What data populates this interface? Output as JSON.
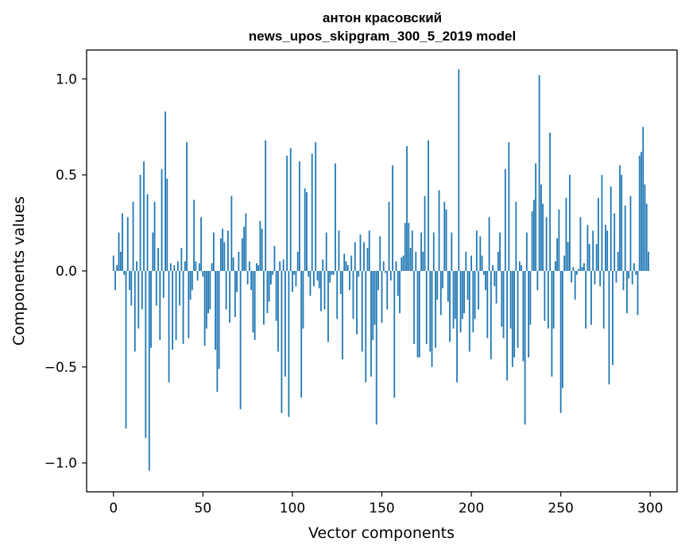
{
  "chart_data": {
    "type": "bar",
    "title": "антон красовский",
    "subtitle": "news_upos_skipgram_300_5_2019 model",
    "xlabel": "Vector components",
    "ylabel": "Components values",
    "xlim": [
      -15,
      315
    ],
    "ylim": [
      -1.15,
      1.15
    ],
    "grid": false,
    "legend": "none",
    "bar_color": "#1f77b4",
    "x_ticks": [
      {
        "value": 0,
        "label": "0"
      },
      {
        "value": 50,
        "label": "50"
      },
      {
        "value": 100,
        "label": "100"
      },
      {
        "value": 150,
        "label": "150"
      },
      {
        "value": 200,
        "label": "200"
      },
      {
        "value": 250,
        "label": "250"
      },
      {
        "value": 300,
        "label": "300"
      }
    ],
    "y_ticks": [
      {
        "value": -1.0,
        "label": "−1.0"
      },
      {
        "value": -0.5,
        "label": "−0.5"
      },
      {
        "value": 0.0,
        "label": "0.0"
      },
      {
        "value": 0.5,
        "label": "0.5"
      },
      {
        "value": 1.0,
        "label": "1.0"
      }
    ],
    "values": [
      0.08,
      -0.1,
      0.03,
      0.2,
      0.1,
      0.3,
      -0.02,
      -0.82,
      0.28,
      -0.1,
      -0.18,
      0.36,
      -0.42,
      0.05,
      -0.3,
      0.5,
      -0.2,
      0.57,
      -0.87,
      0.4,
      -1.04,
      -0.4,
      0.2,
      0.36,
      -0.18,
      0.12,
      -0.36,
      0.53,
      -0.14,
      0.83,
      0.48,
      -0.58,
      0.04,
      -0.41,
      0.03,
      -0.36,
      0.05,
      -0.18,
      0.12,
      -0.38,
      0.05,
      0.67,
      -0.35,
      -0.15,
      -0.1,
      0.37,
      0.05,
      -0.05,
      0.04,
      0.28,
      -0.03,
      -0.39,
      -0.3,
      -0.22,
      -0.2,
      0.04,
      0.2,
      -0.41,
      -0.63,
      -0.51,
      0.17,
      0.22,
      0.15,
      -0.2,
      0.21,
      -0.27,
      0.39,
      0.07,
      -0.24,
      -0.11,
      0.1,
      -0.72,
      0.17,
      0.23,
      0.3,
      -0.07,
      0.05,
      -0.1,
      -0.32,
      -0.36,
      0.04,
      0.03,
      0.26,
      0.22,
      -0.28,
      0.68,
      -0.22,
      -0.16,
      -0.07,
      -0.02,
      0.13,
      -0.26,
      -0.42,
      0.05,
      -0.74,
      0.06,
      -0.55,
      0.6,
      -0.76,
      0.64,
      -0.11,
      -0.02,
      -0.08,
      0.1,
      0.57,
      -0.66,
      -0.3,
      0.43,
      0.41,
      -0.03,
      -0.13,
      0.61,
      -0.08,
      0.67,
      -0.05,
      -0.09,
      -0.21,
      0.06,
      -0.2,
      0.2,
      -0.37,
      -0.06,
      -0.02,
      -0.02,
      0.56,
      -0.25,
      0.21,
      -0.12,
      -0.46,
      0.09,
      0.05,
      0.03,
      -0.1,
      0.08,
      -0.25,
      0.15,
      -0.33,
      -0.03,
      0.19,
      -0.42,
      0.15,
      -0.58,
      0.12,
      0.21,
      -0.55,
      -0.36,
      -0.28,
      -0.8,
      -0.1,
      0.18,
      -0.27,
      0.05,
      -0.01,
      -0.2,
      0.36,
      -0.05,
      0.55,
      -0.66,
      0.05,
      -0.13,
      -0.22,
      0.07,
      0.08,
      0.25,
      0.65,
      0.25,
      0.12,
      0.21,
      -0.38,
      0.1,
      -0.45,
      -0.45,
      0.2,
      0.1,
      0.39,
      -0.38,
      0.68,
      -0.42,
      -0.5,
      0.2,
      -0.4,
      -0.15,
      0.42,
      -0.23,
      -0.09,
      0.36,
      0.32,
      -0.16,
      -0.37,
      0.2,
      -0.3,
      -0.25,
      -0.58,
      1.05,
      -0.32,
      -0.25,
      -0.22,
      0.1,
      -0.15,
      -0.42,
      0.08,
      -0.32,
      -0.25,
      0.21,
      -0.2,
      0.18,
      0.08,
      -0.02,
      -0.1,
      -0.35,
      0.28,
      -0.46,
      0.03,
      -0.08,
      -0.17,
      0.1,
      0.2,
      -0.29,
      -0.35,
      0.53,
      -0.57,
      0.67,
      -0.3,
      -0.5,
      -0.45,
      0.36,
      -0.4,
      0.05,
      0.03,
      -0.47,
      -0.8,
      0.2,
      -0.45,
      -0.28,
      0.31,
      0.37,
      0.56,
      -0.1,
      1.02,
      0.45,
      0.35,
      -0.26,
      0.28,
      -0.3,
      0.72,
      -0.55,
      -0.3,
      0.05,
      0.17,
      0.32,
      -0.74,
      -0.61,
      0.08,
      0.38,
      0.15,
      0.5,
      -0.06,
      0.02,
      -0.15,
      -0.02,
      0.01,
      0.28,
      0.02,
      0.04,
      -0.3,
      0.24,
      0.14,
      -0.28,
      0.21,
      -0.07,
      0.14,
      0.38,
      -0.08,
      0.5,
      -0.3,
      0.24,
      0.21,
      -0.59,
      0.44,
      -0.49,
      0.3,
      -0.06,
      0.1,
      0.55,
      0.5,
      -0.1,
      0.34,
      -0.22,
      -0.04,
      0.39,
      -0.07,
      0.04,
      -0.02,
      -0.23,
      0.6,
      0.62,
      0.75,
      0.45,
      0.35,
      0.1
    ]
  }
}
